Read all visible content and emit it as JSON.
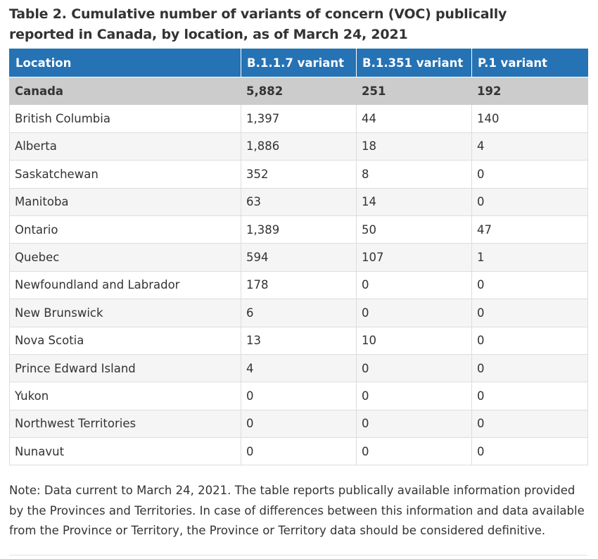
{
  "caption": "Table 2. Cumulative number of variants of concern (VOC) publically reported in Canada, by location, as of March 24, 2021",
  "table": {
    "headers": [
      "Location",
      "B.1.1.7 variant",
      "B.1.351 variant",
      "P.1 variant"
    ],
    "total": [
      "Canada",
      "5,882",
      "251",
      "192"
    ],
    "rows": [
      [
        "British Columbia",
        "1,397",
        "44",
        "140"
      ],
      [
        "Alberta",
        "1,886",
        "18",
        "4"
      ],
      [
        "Saskatchewan",
        "352",
        "8",
        "0"
      ],
      [
        "Manitoba",
        "63",
        "14",
        "0"
      ],
      [
        "Ontario",
        "1,389",
        "50",
        "47"
      ],
      [
        "Quebec",
        "594",
        "107",
        "1"
      ],
      [
        "Newfoundland and Labrador",
        "178",
        "0",
        "0"
      ],
      [
        "New Brunswick",
        "6",
        "0",
        "0"
      ],
      [
        "Nova Scotia",
        "13",
        "10",
        "0"
      ],
      [
        "Prince Edward Island",
        "4",
        "0",
        "0"
      ],
      [
        "Yukon",
        "0",
        "0",
        "0"
      ],
      [
        "Northwest Territories",
        "0",
        "0",
        "0"
      ],
      [
        "Nunavut",
        "0",
        "0",
        "0"
      ]
    ]
  },
  "note": "Note: Data current to March 24, 2021. The table reports publically available information provided by the Provinces and Territories. In case of differences between this information and data available from the Province or Territory, the Province or Territory data should be considered definitive.",
  "colors": {
    "header_bg": "#2572b4",
    "total_row_bg": "#cccccc",
    "stripe_bg": "#f5f5f5"
  }
}
